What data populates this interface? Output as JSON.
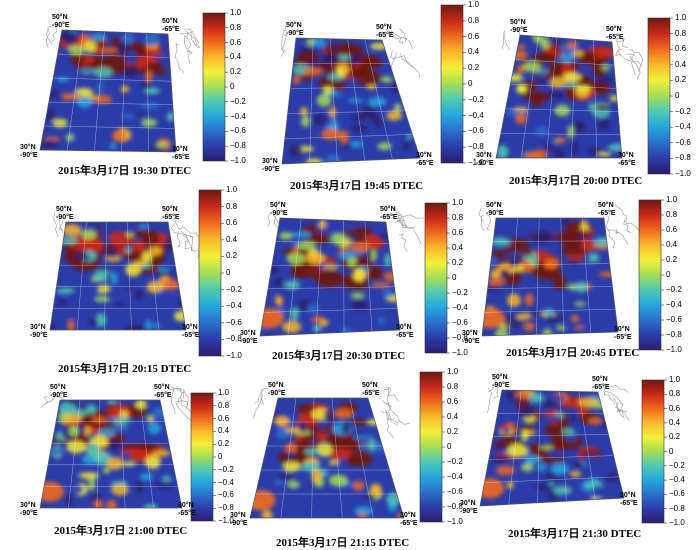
{
  "colorbar": {
    "ticks": [
      "1.0",
      "0.8",
      "0.6",
      "0.4",
      "0.2",
      "0",
      "−0.2",
      "−0.4",
      "−0.6",
      "−0.8",
      "−1.0"
    ],
    "colors": [
      "#6d1a12",
      "#c8281a",
      "#ef6a1e",
      "#f9b92c",
      "#f3ef3a",
      "#a5dd57",
      "#4fc9b5",
      "#26a6dc",
      "#2b6fcb",
      "#2b3ca8",
      "#2b1d6e"
    ]
  },
  "corner_labels": {
    "nw_lat": "50°N",
    "nw_lon": "-90°E",
    "ne_lat": "50°N",
    "ne_lon": "-65°E",
    "sw_lat": "30°N",
    "sw_lon": "-90°E",
    "se_lat": "30°N",
    "se_lon": "-65°E"
  },
  "panels": [
    {
      "caption": "2015年3月17日 19:30 DTEC",
      "hot": 0.25
    },
    {
      "caption": "2015年3月17日 19:45 DTEC",
      "hot": 0.3
    },
    {
      "caption": "2015年3月17日 20:00 DTEC",
      "hot": 0.45
    },
    {
      "caption": "2015年3月17日 20:15 DTEC",
      "hot": 0.35
    },
    {
      "caption": "2015年3月17日 20:30 DTEC",
      "hot": 0.5
    },
    {
      "caption": "2015年3月17日 20:45 DTEC",
      "hot": 0.5
    },
    {
      "caption": "2015年3月17日 21:00 DTEC",
      "hot": 0.45
    },
    {
      "caption": "2015年3月17日 21:15 DTEC",
      "hot": 0.45
    },
    {
      "caption": "2015年3月17日 21:30 DTEC",
      "hot": 0.55
    }
  ]
}
